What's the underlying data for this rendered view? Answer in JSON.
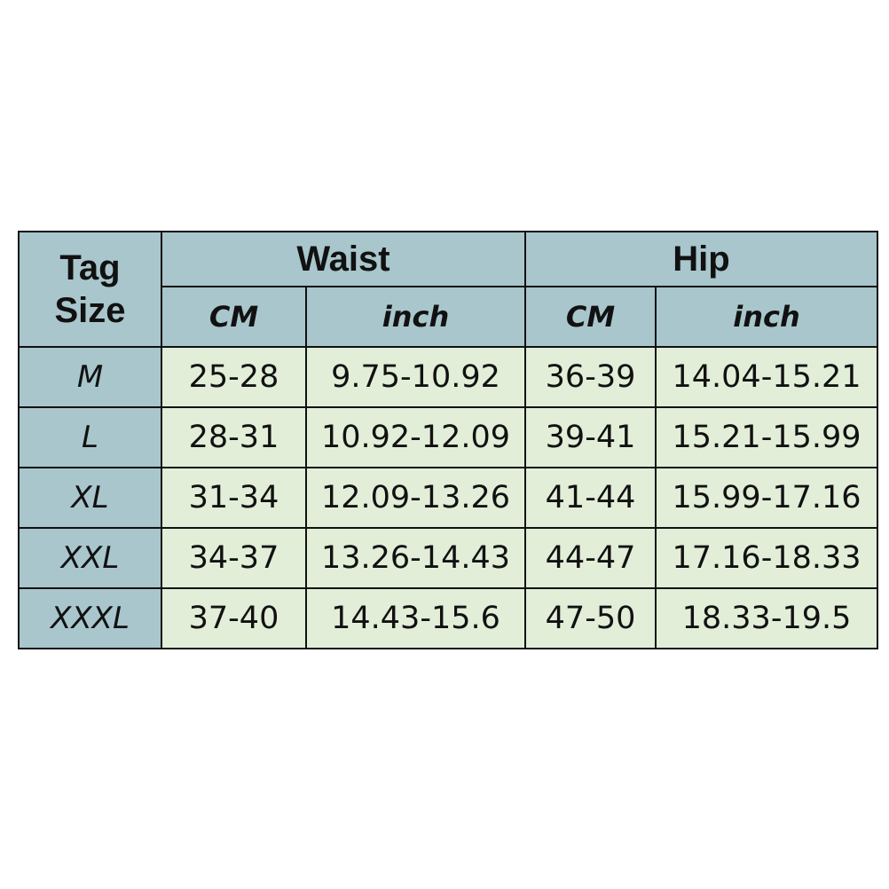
{
  "header": {
    "tag_size": "Tag Size",
    "tag_line1": "Tag",
    "tag_line2": "Size",
    "groups": [
      "Waist",
      "Hip"
    ],
    "subcolumns": [
      "CM",
      "inch",
      "CM",
      "inch"
    ]
  },
  "rows": [
    {
      "size": "M",
      "waist_cm": "25-28",
      "waist_inch": "9.75-10.92",
      "hip_cm": "36-39",
      "hip_inch": "14.04-15.21"
    },
    {
      "size": "L",
      "waist_cm": "28-31",
      "waist_inch": "10.92-12.09",
      "hip_cm": "39-41",
      "hip_inch": "15.21-15.99"
    },
    {
      "size": "XL",
      "waist_cm": "31-34",
      "waist_inch": "12.09-13.26",
      "hip_cm": "41-44",
      "hip_inch": "15.99-17.16"
    },
    {
      "size": "XXL",
      "waist_cm": "34-37",
      "waist_inch": "13.26-14.43",
      "hip_cm": "44-47",
      "hip_inch": "17.16-18.33"
    },
    {
      "size": "XXXL",
      "waist_cm": "37-40",
      "waist_inch": "14.43-15.6",
      "hip_cm": "47-50",
      "hip_inch": "18.33-19.5"
    }
  ],
  "colors": {
    "header_bg": "#a8c6cc",
    "body_bg": "#e2eed8",
    "border": "#111111"
  }
}
